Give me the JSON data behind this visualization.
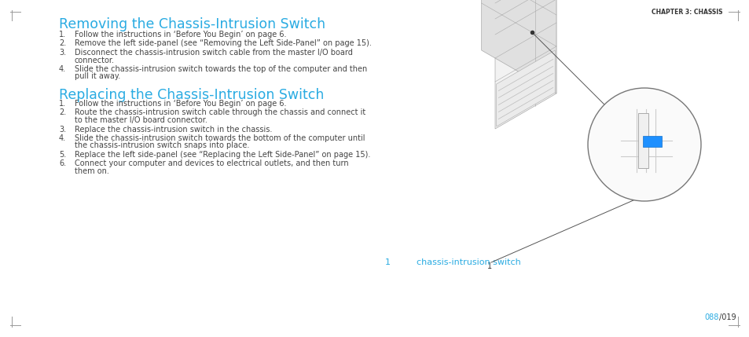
{
  "bg_color": "#ffffff",
  "border_color": "#999999",
  "heading_color": "#29abe2",
  "text_color": "#444444",
  "cyan_color": "#29abe2",
  "chapter_text": "CHAPTER 3: CHASSIS",
  "title1": "Removing the Chassis-Intrusion Switch",
  "title2": "Replacing the Chassis-Intrusion Switch",
  "remove_steps": [
    [
      "1.",
      "Follow the instructions in ‘Before You Begin’ on page 6."
    ],
    [
      "2.",
      "Remove the left side-panel (see “Removing the Left Side-Panel” on page 15)."
    ],
    [
      "3.",
      "Disconnect the chassis-intrusion switch cable from the master I/O board",
      "connector."
    ],
    [
      "4.",
      "Slide the chassis-intrusion switch towards the top of the computer and then",
      "pull it away."
    ]
  ],
  "replace_steps": [
    [
      "1.",
      "Follow the instructions in ‘Before You Begin’ on page 6."
    ],
    [
      "2.",
      "Route the chassis-intrusion switch cable through the chassis and connect it",
      "to the master I/O board connector."
    ],
    [
      "3.",
      "Replace the chassis-intrusion switch in the chassis."
    ],
    [
      "4.",
      "Slide the chassis-intrusion switch towards the bottom of the computer until",
      "the chassis-intrusion switch snaps into place."
    ],
    [
      "5.",
      "Replace the left side-panel (see “Replacing the Left Side-Panel” on page 15)."
    ],
    [
      "6.",
      "Connect your computer and devices to electrical outlets, and then turn",
      "them on."
    ]
  ],
  "callout_label": "1",
  "callout_text": "chassis-intrusion switch",
  "page_num": "019",
  "page_icon": "088",
  "figsize": [
    9.54,
    4.29
  ],
  "dpi": 100
}
